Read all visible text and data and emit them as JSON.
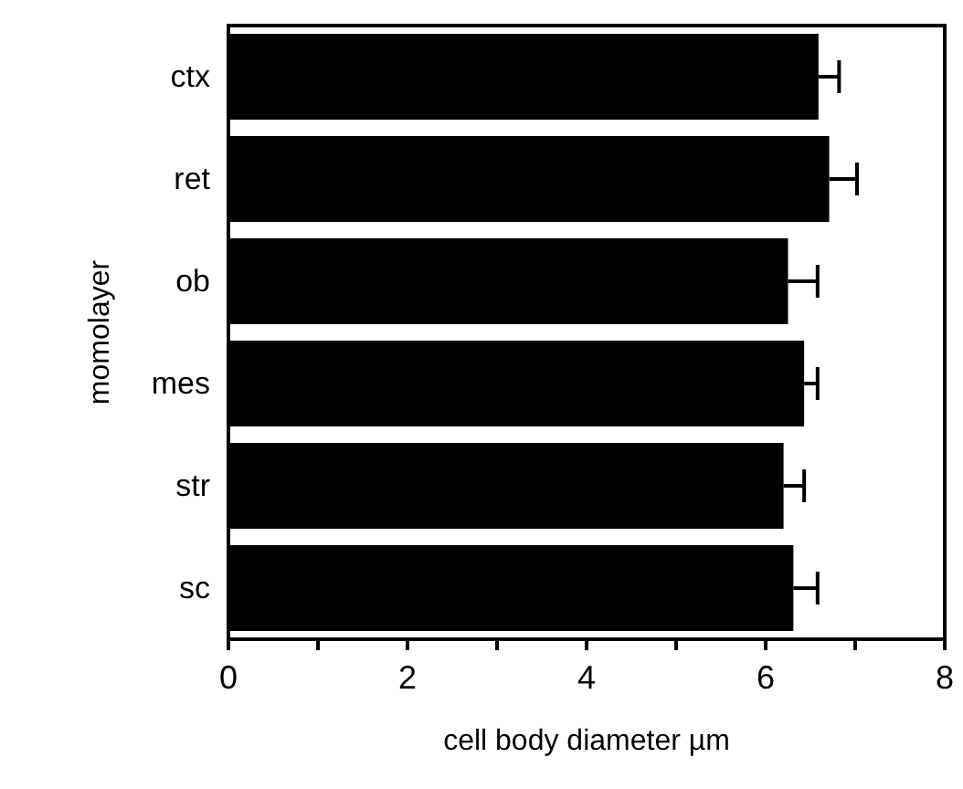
{
  "chart_data": {
    "type": "bar",
    "orientation": "horizontal",
    "xlabel": "cell body diameter µm",
    "ylabel": "momolayer",
    "categories": [
      "ctx",
      "ret",
      "ob",
      "mes",
      "str",
      "sc"
    ],
    "values": [
      6.59,
      6.71,
      6.25,
      6.43,
      6.2,
      6.31
    ],
    "color": "#000000",
    "errors": [
      [
        6.59,
        6.82
      ],
      [
        6.71,
        7.02
      ],
      [
        6.25,
        6.58
      ],
      [
        6.43,
        6.58
      ],
      [
        6.2,
        6.43
      ],
      [
        6.31,
        6.58
      ]
    ],
    "xlim": [
      0,
      8
    ],
    "xticks": [
      0,
      {
        "value": 1,
        "label": null
      },
      2,
      {
        "value": 3,
        "label": null
      },
      4,
      {
        "value": 5,
        "label": null
      },
      6,
      {
        "value": 7,
        "label": null
      },
      8
    ],
    "grid": false
  }
}
